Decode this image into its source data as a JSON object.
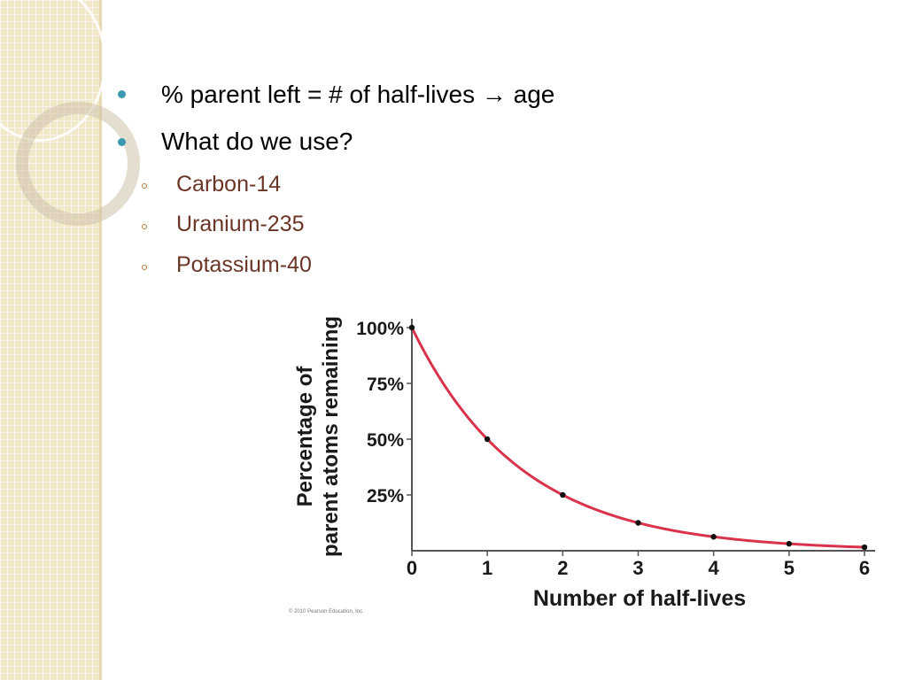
{
  "slide": {
    "bullets": [
      {
        "text": "% parent left = # of half-lives → age"
      },
      {
        "text": "What do we use?"
      }
    ],
    "sub_bullets": [
      {
        "text": "Carbon-14"
      },
      {
        "text": "Uranium-235"
      },
      {
        "text": "Potassium-40"
      }
    ],
    "copyright": "© 2010 Pearson Education, Inc."
  },
  "colors": {
    "curve": "#d8334a",
    "bullet": "#3a98b3",
    "sub_text": "#6b3526",
    "sidebar": "#f1e7c9"
  },
  "chart_data": {
    "type": "line",
    "xlabel": "Number of half-lives",
    "ylabel_line1": "Percentage of",
    "ylabel_line2": "parent atoms remaining",
    "x": [
      0,
      1,
      2,
      3,
      4,
      5,
      6
    ],
    "xticks": [
      "0",
      "1",
      "2",
      "3",
      "4",
      "5",
      "6"
    ],
    "yticks": [
      {
        "value": 25,
        "label": "25%"
      },
      {
        "value": 50,
        "label": "50%"
      },
      {
        "value": 75,
        "label": "75%"
      },
      {
        "value": 100,
        "label": "100%"
      }
    ],
    "series": [
      {
        "values": [
          100,
          50,
          25,
          12.5,
          6.25,
          3.125,
          1.5625
        ]
      }
    ],
    "xlim": [
      0,
      6
    ],
    "ylim": [
      0,
      100
    ],
    "grid": false,
    "legend": false
  }
}
